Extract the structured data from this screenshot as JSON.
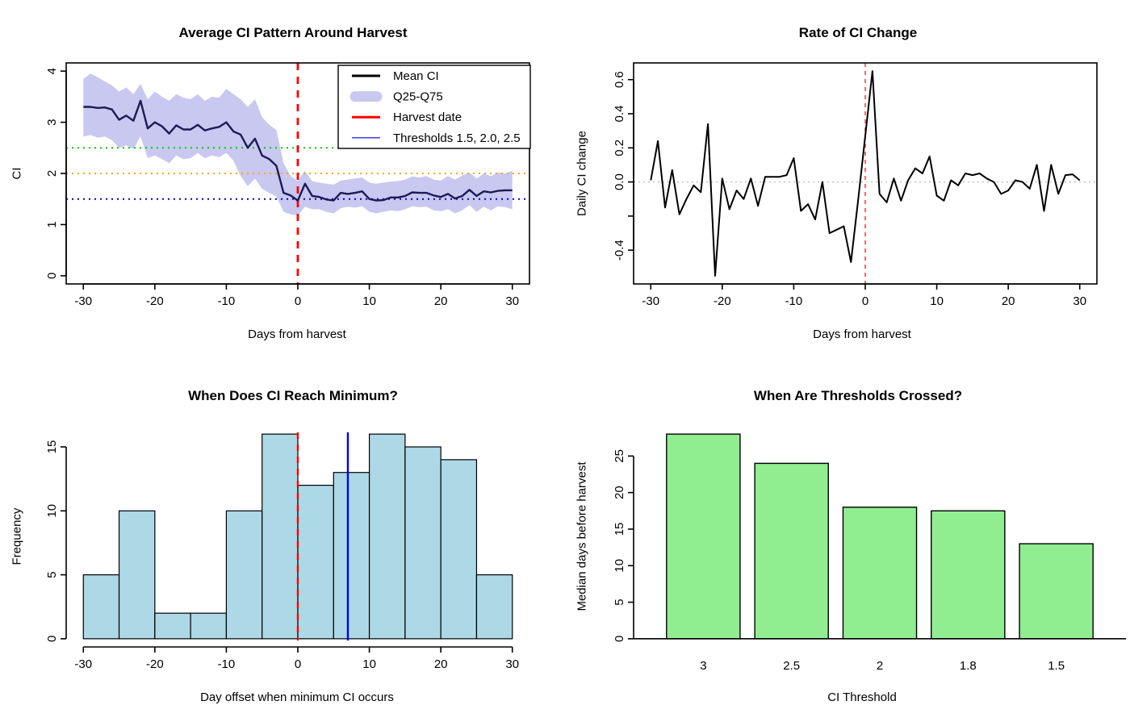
{
  "chart_data": [
    {
      "id": "average-ci",
      "type": "line",
      "title": "Average CI Pattern Around Harvest",
      "xlabel": "Days from harvest",
      "ylabel": "CI",
      "xlim": [
        -30,
        30
      ],
      "ylim": [
        0,
        4
      ],
      "xticks": [
        {
          "v": -30,
          "label": "-30"
        },
        {
          "v": -20,
          "label": "-20"
        },
        {
          "v": -10,
          "label": "-10"
        },
        {
          "v": 0,
          "label": "0"
        },
        {
          "v": 10,
          "label": "10"
        },
        {
          "v": 20,
          "label": "20"
        },
        {
          "v": 30,
          "label": "30"
        }
      ],
      "yticks": [
        {
          "v": 0,
          "label": "0"
        },
        {
          "v": 1,
          "label": "1"
        },
        {
          "v": 2,
          "label": "2"
        },
        {
          "v": 3,
          "label": "3"
        },
        {
          "v": 4,
          "label": "4"
        }
      ],
      "x": [
        -30,
        -29,
        -28,
        -27,
        -26,
        -25,
        -24,
        -23,
        -22,
        -21,
        -20,
        -19,
        -18,
        -17,
        -16,
        -15,
        -14,
        -13,
        -12,
        -11,
        -10,
        -9,
        -8,
        -7,
        -6,
        -5,
        -4,
        -3,
        -2,
        -1,
        0,
        1,
        2,
        3,
        4,
        5,
        6,
        7,
        8,
        9,
        10,
        11,
        12,
        13,
        14,
        15,
        16,
        17,
        18,
        19,
        20,
        21,
        22,
        23,
        24,
        25,
        26,
        27,
        28,
        29,
        30
      ],
      "series": [
        {
          "name": "mean-ci",
          "label": "Mean CI",
          "color": "#1B1B55",
          "width": 2.4,
          "values": [
            3.3,
            3.3,
            3.28,
            3.29,
            3.25,
            3.05,
            3.13,
            3.03,
            3.42,
            2.88,
            3.0,
            2.92,
            2.78,
            2.94,
            2.86,
            2.86,
            2.95,
            2.84,
            2.88,
            2.91,
            3.0,
            2.82,
            2.76,
            2.5,
            2.68,
            2.35,
            2.28,
            2.15,
            1.62,
            1.57,
            1.47,
            1.8,
            1.56,
            1.54,
            1.49,
            1.47,
            1.62,
            1.6,
            1.62,
            1.65,
            1.5,
            1.47,
            1.48,
            1.53,
            1.53,
            1.56,
            1.63,
            1.62,
            1.62,
            1.57,
            1.54,
            1.6,
            1.51,
            1.56,
            1.68,
            1.56,
            1.65,
            1.63,
            1.66,
            1.67,
            1.67
          ]
        }
      ],
      "band": {
        "name": "q25-q75",
        "label": "Q25-Q75",
        "color": "#C8C8F0",
        "upper": [
          3.85,
          3.95,
          3.88,
          3.8,
          3.72,
          3.6,
          3.68,
          3.55,
          3.75,
          3.45,
          3.6,
          3.5,
          3.42,
          3.55,
          3.48,
          3.45,
          3.55,
          3.42,
          3.5,
          3.48,
          3.65,
          3.55,
          3.45,
          3.3,
          3.45,
          3.1,
          2.95,
          2.85,
          2.2,
          1.95,
          1.85,
          2.05,
          1.85,
          1.82,
          1.8,
          1.78,
          1.86,
          1.88,
          1.9,
          1.92,
          1.82,
          1.8,
          1.82,
          1.84,
          1.85,
          1.88,
          1.94,
          1.92,
          1.95,
          1.88,
          1.86,
          1.95,
          1.88,
          1.96,
          2.02,
          1.9,
          2.0,
          1.95,
          2.02,
          2.0,
          2.05
        ],
        "lower": [
          2.72,
          2.75,
          2.7,
          2.72,
          2.65,
          2.5,
          2.55,
          2.48,
          2.72,
          2.3,
          2.35,
          2.28,
          2.2,
          2.35,
          2.28,
          2.3,
          2.4,
          2.3,
          2.35,
          2.32,
          2.4,
          2.25,
          1.95,
          1.75,
          1.9,
          1.7,
          1.62,
          1.55,
          1.25,
          1.2,
          1.18,
          1.35,
          1.3,
          1.3,
          1.25,
          1.22,
          1.32,
          1.35,
          1.33,
          1.36,
          1.25,
          1.22,
          1.25,
          1.28,
          1.26,
          1.3,
          1.36,
          1.34,
          1.35,
          1.28,
          1.26,
          1.3,
          1.22,
          1.28,
          1.38,
          1.25,
          1.35,
          1.28,
          1.36,
          1.34,
          1.3
        ]
      },
      "thresholds": [
        {
          "value": 2.5,
          "color": "#00CD00"
        },
        {
          "value": 2.0,
          "color": "#FFA500"
        },
        {
          "value": 1.5,
          "color": "#0000CD"
        }
      ],
      "vlines": [
        {
          "x": 0,
          "name": "harvest-date-line",
          "color": "#FF0000",
          "dash": "9,8",
          "width": 2.8
        }
      ],
      "legend": {
        "items": [
          {
            "label": "Mean CI",
            "swatch": "line",
            "color": "#000000",
            "width": 3
          },
          {
            "label": "Q25-Q75",
            "swatch": "band",
            "color": "#C8C8F0"
          },
          {
            "label": "Harvest date",
            "swatch": "line",
            "color": "#FF0000",
            "width": 3
          },
          {
            "label": "Thresholds 1.5, 2.0, 2.5",
            "swatch": "line",
            "color": "#0000EE",
            "width": 1.2
          }
        ]
      }
    },
    {
      "id": "rate-of-change",
      "type": "line",
      "title": "Rate of CI Change",
      "xlabel": "Days from harvest",
      "ylabel": "Daily CI change",
      "xlim": [
        -30,
        30
      ],
      "ylim": [
        -0.55,
        0.65
      ],
      "xticks": [
        {
          "v": -30,
          "label": "-30"
        },
        {
          "v": -20,
          "label": "-20"
        },
        {
          "v": -10,
          "label": "-10"
        },
        {
          "v": 0,
          "label": "0"
        },
        {
          "v": 10,
          "label": "10"
        },
        {
          "v": 20,
          "label": "20"
        },
        {
          "v": 30,
          "label": "30"
        }
      ],
      "yticks": [
        {
          "v": 0.6,
          "label": "0.6"
        },
        {
          "v": 0.4,
          "label": "0.4"
        },
        {
          "v": 0.2,
          "label": "0.2"
        },
        {
          "v": 0.0,
          "label": "0.0"
        },
        {
          "v": -0.2,
          "label": ""
        },
        {
          "v": -0.4,
          "label": "-0.4"
        }
      ],
      "x": [
        -30,
        -29,
        -28,
        -27,
        -26,
        -25,
        -24,
        -23,
        -22,
        -21,
        -20,
        -19,
        -18,
        -17,
        -16,
        -15,
        -14,
        -13,
        -12,
        -11,
        -10,
        -9,
        -8,
        -7,
        -6,
        -5,
        -4,
        -3,
        -2,
        -1,
        0,
        1,
        2,
        3,
        4,
        5,
        6,
        7,
        8,
        9,
        10,
        11,
        12,
        13,
        14,
        15,
        16,
        17,
        18,
        19,
        20,
        21,
        22,
        23,
        24,
        25,
        26,
        27,
        28,
        29,
        30
      ],
      "series": [
        {
          "name": "daily-ci-change",
          "label": "Daily CI change",
          "color": "#000000",
          "width": 2,
          "values": [
            0.01,
            0.24,
            -0.15,
            0.07,
            -0.19,
            -0.1,
            -0.02,
            -0.06,
            0.34,
            -0.55,
            0.02,
            -0.16,
            -0.05,
            -0.1,
            0.02,
            -0.14,
            0.03,
            0.03,
            0.03,
            0.04,
            0.14,
            -0.17,
            -0.13,
            -0.22,
            0.0,
            -0.3,
            -0.28,
            -0.26,
            -0.47,
            -0.11,
            0.27,
            0.65,
            -0.07,
            -0.12,
            0.02,
            -0.11,
            0.01,
            0.08,
            0.05,
            0.15,
            -0.08,
            -0.11,
            0.01,
            -0.02,
            0.05,
            0.04,
            0.05,
            0.02,
            0.0,
            -0.07,
            -0.05,
            0.01,
            0.0,
            -0.04,
            0.1,
            -0.17,
            0.1,
            -0.07,
            0.04,
            0.045,
            0.01
          ]
        }
      ],
      "hlines": [
        {
          "y": 0,
          "name": "zero-change-line",
          "color": "#BEBEBE",
          "dash": "2,4",
          "width": 1.4
        }
      ],
      "vlines": [
        {
          "x": 0,
          "name": "harvest-date-line",
          "color": "#DD3333",
          "dash": "5,5",
          "width": 1.4
        }
      ]
    },
    {
      "id": "min-histogram",
      "type": "bar",
      "title": "When Does CI Reach Minimum?",
      "xlabel": "Day offset when minimum CI occurs",
      "ylabel": "Frequency",
      "bin_start": -30,
      "bin_width": 5,
      "counts": [
        5,
        10,
        2,
        2,
        10,
        16,
        12,
        13,
        16,
        15,
        14,
        5
      ],
      "xlim": [
        -30,
        30
      ],
      "xticks": [
        {
          "v": -30,
          "label": "-30"
        },
        {
          "v": -20,
          "label": "-20"
        },
        {
          "v": -10,
          "label": "-10"
        },
        {
          "v": 0,
          "label": "0"
        },
        {
          "v": 10,
          "label": "10"
        },
        {
          "v": 20,
          "label": "20"
        },
        {
          "v": 30,
          "label": "30"
        }
      ],
      "yticks": [
        {
          "v": 0,
          "label": "0"
        },
        {
          "v": 5,
          "label": "5"
        },
        {
          "v": 10,
          "label": "10"
        },
        {
          "v": 15,
          "label": "15"
        }
      ],
      "bar_fill": "#ADD8E6",
      "bar_stroke": "#000000",
      "vlines": [
        {
          "x": 0,
          "name": "harvest-date-line",
          "color": "#FF0000",
          "dash": "8,7",
          "width": 2.4
        },
        {
          "x": 7,
          "name": "median-minimum-day-line",
          "color": "#0000FF",
          "dash": "",
          "width": 2.4
        }
      ]
    },
    {
      "id": "threshold-bars",
      "type": "bar",
      "title": "When Are Thresholds Crossed?",
      "xlabel": "CI Threshold",
      "ylabel": "Median days before harvest",
      "categories": [
        "3",
        "2.5",
        "2",
        "1.8",
        "1.5"
      ],
      "values": [
        28,
        24,
        18,
        17.5,
        13
      ],
      "yticks": [
        {
          "v": 0,
          "label": "0"
        },
        {
          "v": 5,
          "label": "5"
        },
        {
          "v": 10,
          "label": "10"
        },
        {
          "v": 15,
          "label": "15"
        },
        {
          "v": 20,
          "label": "20"
        },
        {
          "v": 25,
          "label": "25"
        }
      ],
      "bar_fill": "#90EE90",
      "bar_stroke": "#000000"
    }
  ]
}
